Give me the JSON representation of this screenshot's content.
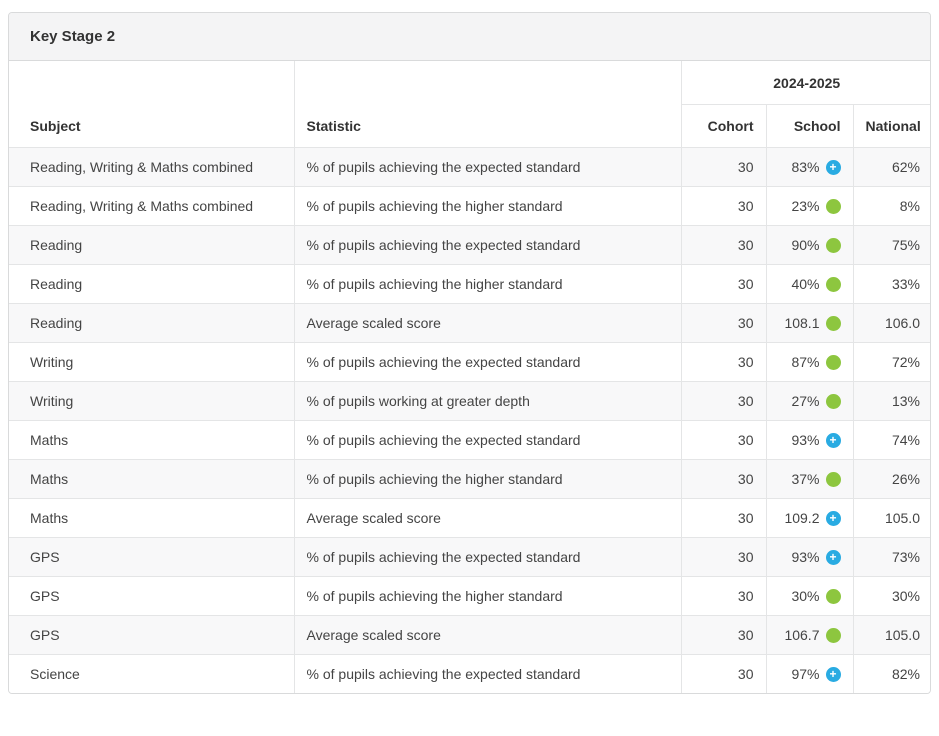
{
  "panel": {
    "title": "Key Stage 2"
  },
  "table": {
    "year_header": "2024-2025",
    "columns": {
      "subject": "Subject",
      "statistic": "Statistic",
      "cohort": "Cohort",
      "school": "School",
      "national": "National"
    },
    "rows": [
      {
        "subject": "Reading, Writing & Maths combined",
        "statistic": "% of pupils achieving the expected standard",
        "cohort": "30",
        "school": "83%",
        "icon": "blue-plus",
        "national": "62%"
      },
      {
        "subject": "Reading, Writing & Maths combined",
        "statistic": "% of pupils achieving the higher standard",
        "cohort": "30",
        "school": "23%",
        "icon": "green-dot",
        "national": "8%"
      },
      {
        "subject": "Reading",
        "statistic": "% of pupils achieving the expected standard",
        "cohort": "30",
        "school": "90%",
        "icon": "green-dot",
        "national": "75%"
      },
      {
        "subject": "Reading",
        "statistic": "% of pupils achieving the higher standard",
        "cohort": "30",
        "school": "40%",
        "icon": "green-dot",
        "national": "33%"
      },
      {
        "subject": "Reading",
        "statistic": "Average scaled score",
        "cohort": "30",
        "school": "108.1",
        "icon": "green-dot",
        "national": "106.0"
      },
      {
        "subject": "Writing",
        "statistic": "% of pupils achieving the expected standard",
        "cohort": "30",
        "school": "87%",
        "icon": "green-dot",
        "national": "72%"
      },
      {
        "subject": "Writing",
        "statistic": "% of pupils working at greater depth",
        "cohort": "30",
        "school": "27%",
        "icon": "green-dot",
        "national": "13%"
      },
      {
        "subject": "Maths",
        "statistic": "% of pupils achieving the expected standard",
        "cohort": "30",
        "school": "93%",
        "icon": "blue-plus",
        "national": "74%"
      },
      {
        "subject": "Maths",
        "statistic": "% of pupils achieving the higher standard",
        "cohort": "30",
        "school": "37%",
        "icon": "green-dot",
        "national": "26%"
      },
      {
        "subject": "Maths",
        "statistic": "Average scaled score",
        "cohort": "30",
        "school": "109.2",
        "icon": "blue-plus",
        "national": "105.0"
      },
      {
        "subject": "GPS",
        "statistic": "% of pupils achieving the expected standard",
        "cohort": "30",
        "school": "93%",
        "icon": "blue-plus",
        "national": "73%"
      },
      {
        "subject": "GPS",
        "statistic": "% of pupils achieving the higher standard",
        "cohort": "30",
        "school": "30%",
        "icon": "green-dot",
        "national": "30%"
      },
      {
        "subject": "GPS",
        "statistic": "Average scaled score",
        "cohort": "30",
        "school": "106.7",
        "icon": "green-dot",
        "national": "105.0"
      },
      {
        "subject": "Science",
        "statistic": "% of pupils achieving the expected standard",
        "cohort": "30",
        "school": "97%",
        "icon": "blue-plus",
        "national": "82%"
      }
    ],
    "icons": {
      "blue_plus_glyph": "+",
      "blue_color": "#29abe2",
      "green_color": "#8dc63f"
    }
  }
}
